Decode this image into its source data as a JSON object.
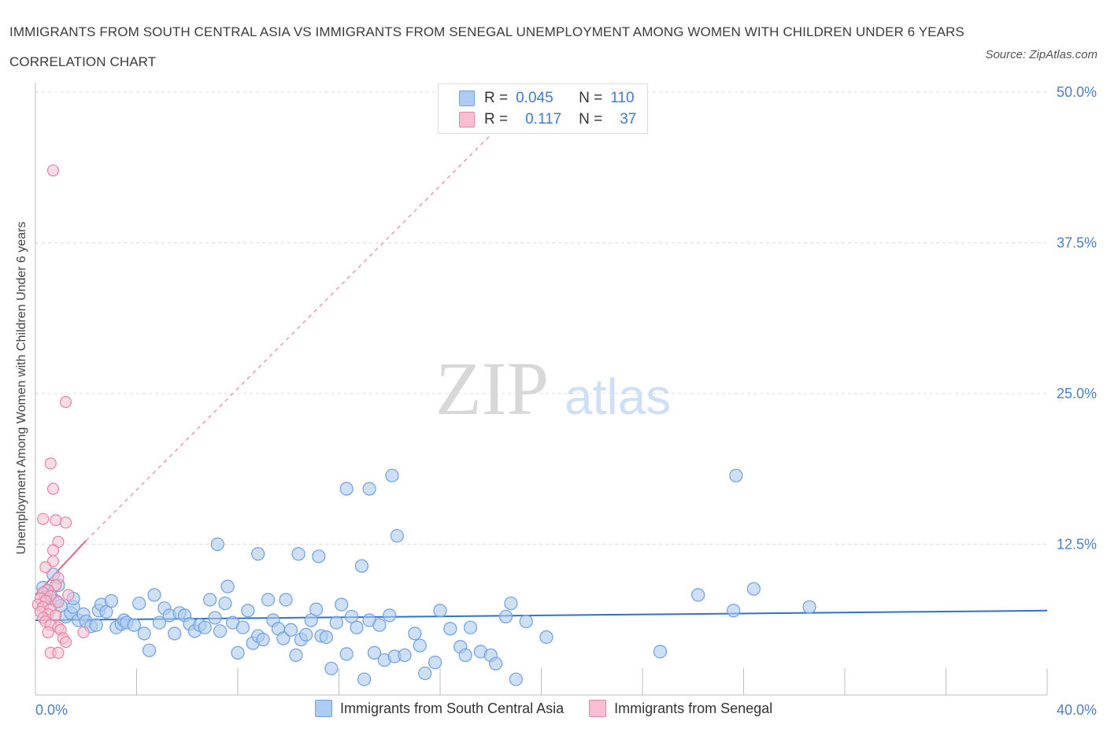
{
  "title": "IMMIGRANTS FROM SOUTH CENTRAL ASIA VS IMMIGRANTS FROM SENEGAL UNEMPLOYMENT AMONG WOMEN WITH CHILDREN UNDER 6 YEARS CORRELATION CHART",
  "source": "Source: ZipAtlas.com",
  "watermark": {
    "zip": "ZIP",
    "atlas": "atlas"
  },
  "legend": {
    "r_label": "R =",
    "n_label": "N =",
    "series": [
      {
        "name": "Immigrants from South Central Asia",
        "r": "0.045",
        "n": "110"
      },
      {
        "name": "Immigrants from Senegal",
        "r": "0.117",
        "n": "37"
      }
    ]
  },
  "colors": {
    "blue_fill": "#aecbf2",
    "blue_stroke": "#6f9fe0",
    "blue_line": "#2e72c9",
    "pink_fill": "#f7bfd1",
    "pink_stroke": "#e8839f",
    "pink_line": "#e4648a",
    "axis_text": "#4a7fd0",
    "grid": "#dddddd"
  },
  "chart_data": {
    "type": "scatter",
    "title": "Immigrants from South Central Asia vs Immigrants from Senegal Unemployment Among Women with Children Under 6 years Correlation Chart",
    "xlabel": "",
    "ylabel": "Unemployment Among Women with Children Under 6 years",
    "xlim": [
      0,
      40
    ],
    "ylim": [
      0,
      50
    ],
    "x_tick_labels": [
      "0.0%",
      "40.0%"
    ],
    "y_ticks": [
      12.5,
      25.0,
      37.5,
      50.0
    ],
    "y_tick_labels": [
      "12.5%",
      "25.0%",
      "37.5%",
      "50.0%"
    ],
    "grid": true,
    "legend_position": "top-center",
    "series": [
      {
        "name": "Immigrants from South Central Asia",
        "trend": {
          "x": [
            0,
            40
          ],
          "y": [
            6.2,
            7.0
          ],
          "style": "solid"
        },
        "points": [
          [
            0.3,
            8.9
          ],
          [
            0.6,
            8.3
          ],
          [
            0.8,
            7.8
          ],
          [
            1.0,
            7.4
          ],
          [
            1.2,
            6.5
          ],
          [
            1.4,
            6.8
          ],
          [
            1.5,
            7.3
          ],
          [
            1.7,
            6.2
          ],
          [
            1.9,
            6.7
          ],
          [
            2.0,
            6.1
          ],
          [
            2.2,
            5.7
          ],
          [
            2.4,
            5.8
          ],
          [
            2.5,
            7.0
          ],
          [
            2.6,
            7.5
          ],
          [
            2.8,
            6.9
          ],
          [
            3.0,
            7.8
          ],
          [
            3.2,
            5.6
          ],
          [
            3.4,
            5.9
          ],
          [
            3.5,
            6.2
          ],
          [
            3.6,
            6.0
          ],
          [
            3.9,
            5.8
          ],
          [
            4.1,
            7.6
          ],
          [
            4.3,
            5.1
          ],
          [
            4.5,
            3.7
          ],
          [
            4.7,
            8.3
          ],
          [
            4.9,
            6.0
          ],
          [
            5.1,
            7.2
          ],
          [
            5.3,
            6.6
          ],
          [
            5.5,
            5.1
          ],
          [
            5.7,
            6.8
          ],
          [
            5.9,
            6.6
          ],
          [
            6.1,
            5.9
          ],
          [
            6.3,
            5.3
          ],
          [
            6.5,
            5.8
          ],
          [
            6.7,
            5.6
          ],
          [
            6.9,
            7.9
          ],
          [
            7.1,
            6.4
          ],
          [
            7.3,
            5.3
          ],
          [
            7.5,
            7.6
          ],
          [
            7.6,
            9.0
          ],
          [
            7.8,
            6.0
          ],
          [
            8.0,
            3.5
          ],
          [
            8.2,
            5.6
          ],
          [
            8.4,
            7.0
          ],
          [
            8.6,
            4.3
          ],
          [
            8.8,
            4.9
          ],
          [
            9.0,
            4.6
          ],
          [
            9.2,
            7.9
          ],
          [
            9.4,
            6.2
          ],
          [
            9.6,
            5.5
          ],
          [
            9.8,
            4.7
          ],
          [
            9.9,
            7.9
          ],
          [
            10.1,
            5.4
          ],
          [
            10.3,
            3.3
          ],
          [
            10.5,
            4.6
          ],
          [
            10.7,
            5.0
          ],
          [
            10.9,
            6.2
          ],
          [
            11.1,
            7.1
          ],
          [
            11.3,
            4.9
          ],
          [
            11.5,
            4.8
          ],
          [
            11.7,
            2.2
          ],
          [
            11.9,
            6.0
          ],
          [
            12.1,
            7.5
          ],
          [
            12.3,
            3.4
          ],
          [
            12.5,
            6.5
          ],
          [
            12.7,
            5.6
          ],
          [
            13.0,
            1.3
          ],
          [
            13.2,
            6.2
          ],
          [
            13.4,
            3.5
          ],
          [
            13.6,
            5.8
          ],
          [
            13.8,
            2.9
          ],
          [
            14.0,
            6.6
          ],
          [
            14.2,
            3.2
          ],
          [
            14.6,
            3.3
          ],
          [
            15.0,
            5.1
          ],
          [
            15.2,
            4.1
          ],
          [
            15.4,
            1.8
          ],
          [
            15.8,
            2.7
          ],
          [
            16.0,
            7.0
          ],
          [
            16.4,
            5.5
          ],
          [
            16.8,
            4.0
          ],
          [
            17.0,
            3.3
          ],
          [
            17.2,
            5.6
          ],
          [
            17.6,
            3.6
          ],
          [
            18.0,
            3.3
          ],
          [
            18.2,
            2.6
          ],
          [
            18.6,
            6.5
          ],
          [
            18.8,
            7.6
          ],
          [
            19.0,
            1.3
          ],
          [
            19.4,
            6.1
          ],
          [
            20.2,
            4.8
          ],
          [
            24.7,
            3.6
          ],
          [
            26.2,
            8.3
          ],
          [
            27.6,
            7.0
          ],
          [
            28.4,
            8.8
          ],
          [
            30.6,
            7.3
          ],
          [
            14.3,
            13.2
          ],
          [
            14.1,
            18.2
          ],
          [
            13.2,
            17.1
          ],
          [
            12.3,
            17.1
          ],
          [
            11.2,
            11.5
          ],
          [
            12.9,
            10.7
          ],
          [
            7.2,
            12.5
          ],
          [
            8.8,
            11.7
          ],
          [
            27.7,
            18.2
          ],
          [
            1.5,
            8.0
          ],
          [
            0.7,
            10.0
          ],
          [
            0.9,
            9.1
          ],
          [
            0.4,
            8.1
          ],
          [
            10.4,
            11.7
          ]
        ]
      },
      {
        "name": "Immigrants from Senegal",
        "trend": {
          "x": [
            0,
            2.0
          ],
          "y": [
            8.3,
            12.8
          ],
          "style": "solid"
        },
        "trend_extended": {
          "x": [
            2.0,
            18.5
          ],
          "y": [
            12.8,
            47.5
          ],
          "style": "dashed"
        },
        "points": [
          [
            0.7,
            43.5
          ],
          [
            1.2,
            24.3
          ],
          [
            0.6,
            19.2
          ],
          [
            0.7,
            17.1
          ],
          [
            0.8,
            14.5
          ],
          [
            1.2,
            14.3
          ],
          [
            0.3,
            14.6
          ],
          [
            0.9,
            12.7
          ],
          [
            0.7,
            12.0
          ],
          [
            0.7,
            11.1
          ],
          [
            0.4,
            10.6
          ],
          [
            0.9,
            9.7
          ],
          [
            0.8,
            9.1
          ],
          [
            0.5,
            8.7
          ],
          [
            0.3,
            8.5
          ],
          [
            0.6,
            8.2
          ],
          [
            1.3,
            8.3
          ],
          [
            0.2,
            8.0
          ],
          [
            0.4,
            7.8
          ],
          [
            0.9,
            7.7
          ],
          [
            0.1,
            7.5
          ],
          [
            0.3,
            7.3
          ],
          [
            0.6,
            7.1
          ],
          [
            0.2,
            6.9
          ],
          [
            0.5,
            6.7
          ],
          [
            0.8,
            6.6
          ],
          [
            0.3,
            6.4
          ],
          [
            0.4,
            6.1
          ],
          [
            0.6,
            5.8
          ],
          [
            0.9,
            5.6
          ],
          [
            1.0,
            5.4
          ],
          [
            0.5,
            5.2
          ],
          [
            1.9,
            5.2
          ],
          [
            1.1,
            4.7
          ],
          [
            1.2,
            4.4
          ],
          [
            0.6,
            3.5
          ],
          [
            0.9,
            3.5
          ]
        ]
      }
    ]
  }
}
